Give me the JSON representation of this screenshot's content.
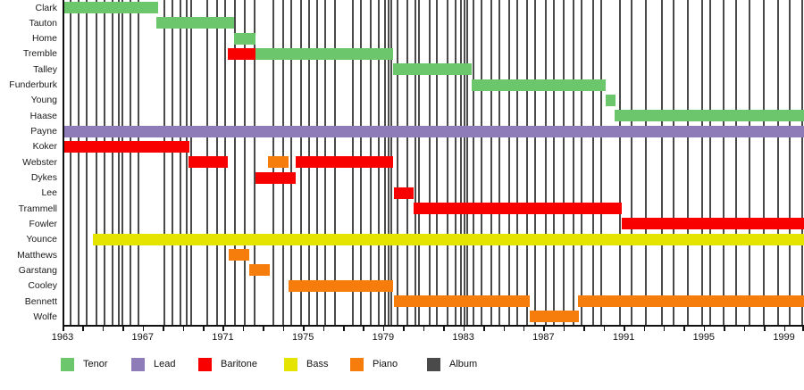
{
  "chart_data": {
    "type": "gantt",
    "title": "",
    "description": "Group member timeline: colored bars show each member's tenure by vocal/instrument part; vertical gray lines mark album releases.",
    "x_axis": {
      "min_year": 1963,
      "max_year": 2000,
      "tick_interval_years": 1,
      "labeled_years": [
        1963,
        1967,
        1971,
        1975,
        1979,
        1983,
        1987,
        1991,
        1995,
        1999
      ]
    },
    "legend": [
      {
        "role": "Tenor",
        "color": "#6cc66c"
      },
      {
        "role": "Lead",
        "color": "#8d7cb8"
      },
      {
        "role": "Baritone",
        "color": "#f90000"
      },
      {
        "role": "Bass",
        "color": "#e4e400"
      },
      {
        "role": "Piano",
        "color": "#f67d0b"
      },
      {
        "role": "Album",
        "color": "#4a4a4a"
      }
    ],
    "members": [
      {
        "name": "Clark",
        "segments": [
          {
            "role": "Tenor",
            "start": 1963.0,
            "end": 1967.75
          }
        ]
      },
      {
        "name": "Tauton",
        "segments": [
          {
            "role": "Tenor",
            "start": 1967.7,
            "end": 1971.55
          }
        ]
      },
      {
        "name": "Home",
        "segments": [
          {
            "role": "Tenor",
            "start": 1971.55,
            "end": 1972.65
          }
        ]
      },
      {
        "name": "Tremble",
        "segments": [
          {
            "role": "Baritone",
            "start": 1971.25,
            "end": 1972.65
          },
          {
            "role": "Tenor",
            "start": 1972.65,
            "end": 1979.5
          }
        ]
      },
      {
        "name": "Talley",
        "segments": [
          {
            "role": "Tenor",
            "start": 1979.5,
            "end": 1983.4
          }
        ]
      },
      {
        "name": "Funderburk",
        "segments": [
          {
            "role": "Tenor",
            "start": 1983.4,
            "end": 1990.1
          }
        ]
      },
      {
        "name": "Young",
        "segments": [
          {
            "role": "Tenor",
            "start": 1990.1,
            "end": 1990.6
          }
        ]
      },
      {
        "name": "Haase",
        "segments": [
          {
            "role": "Tenor",
            "start": 1990.55,
            "end": 2000.0
          }
        ]
      },
      {
        "name": "Payne",
        "segments": [
          {
            "role": "Lead",
            "start": 1963.0,
            "end": 2000.0
          }
        ]
      },
      {
        "name": "Koker",
        "segments": [
          {
            "role": "Baritone",
            "start": 1963.0,
            "end": 1969.35
          }
        ]
      },
      {
        "name": "Webster",
        "segments": [
          {
            "role": "Baritone",
            "start": 1969.3,
            "end": 1971.25
          },
          {
            "role": "Piano",
            "start": 1973.25,
            "end": 1974.3
          },
          {
            "role": "Baritone",
            "start": 1974.65,
            "end": 1979.5
          }
        ]
      },
      {
        "name": "Dykes",
        "segments": [
          {
            "role": "Baritone",
            "start": 1972.65,
            "end": 1974.65
          }
        ]
      },
      {
        "name": "Lee",
        "segments": [
          {
            "role": "Baritone",
            "start": 1979.55,
            "end": 1980.5
          }
        ]
      },
      {
        "name": "Trammell",
        "segments": [
          {
            "role": "Baritone",
            "start": 1980.5,
            "end": 1990.9
          }
        ]
      },
      {
        "name": "Fowler",
        "segments": [
          {
            "role": "Baritone",
            "start": 1990.9,
            "end": 2000.0
          }
        ]
      },
      {
        "name": "Younce",
        "segments": [
          {
            "role": "Bass",
            "start": 1964.5,
            "end": 2000.0
          }
        ]
      },
      {
        "name": "Matthews",
        "segments": [
          {
            "role": "Piano",
            "start": 1971.3,
            "end": 1972.3
          }
        ]
      },
      {
        "name": "Garstang",
        "segments": [
          {
            "role": "Piano",
            "start": 1972.3,
            "end": 1973.35
          }
        ]
      },
      {
        "name": "Cooley",
        "segments": [
          {
            "role": "Piano",
            "start": 1974.3,
            "end": 1979.5
          }
        ]
      },
      {
        "name": "Bennett",
        "segments": [
          {
            "role": "Piano",
            "start": 1979.55,
            "end": 1986.3
          },
          {
            "role": "Piano",
            "start": 1988.7,
            "end": 2000.0
          }
        ]
      },
      {
        "name": "Wolfe",
        "segments": [
          {
            "role": "Piano",
            "start": 1986.3,
            "end": 1988.75
          }
        ]
      }
    ],
    "album_release_years": [
      1963.4,
      1963.8,
      1964.2,
      1964.7,
      1965.1,
      1965.5,
      1965.8,
      1966.0,
      1966.4,
      1966.8,
      1968.1,
      1968.5,
      1968.9,
      1969.2,
      1969.4,
      1970.2,
      1970.7,
      1971.1,
      1971.6,
      1972.1,
      1972.6,
      1973.5,
      1974.0,
      1974.4,
      1974.9,
      1975.3,
      1975.7,
      1976.1,
      1976.6,
      1977.5,
      1977.9,
      1978.4,
      1978.8,
      1979.1,
      1979.25,
      1979.4,
      1979.7,
      1980.2,
      1980.6,
      1980.8,
      1981.3,
      1981.7,
      1982.2,
      1982.6,
      1982.9,
      1983.05,
      1983.2,
      1983.5,
      1983.9,
      1984.4,
      1984.8,
      1985.3,
      1985.7,
      1986.2,
      1986.6,
      1987.1,
      1987.5,
      1988.0,
      1988.5,
      1988.9,
      1989.5,
      1989.9,
      1990.8,
      1991.4,
      1992.1,
      1992.9,
      1993.5,
      1994.2,
      1994.9,
      1995.3,
      1996.0,
      1996.6,
      1997.3,
      1998.0,
      1998.7,
      1999.3,
      1999.9
    ]
  }
}
